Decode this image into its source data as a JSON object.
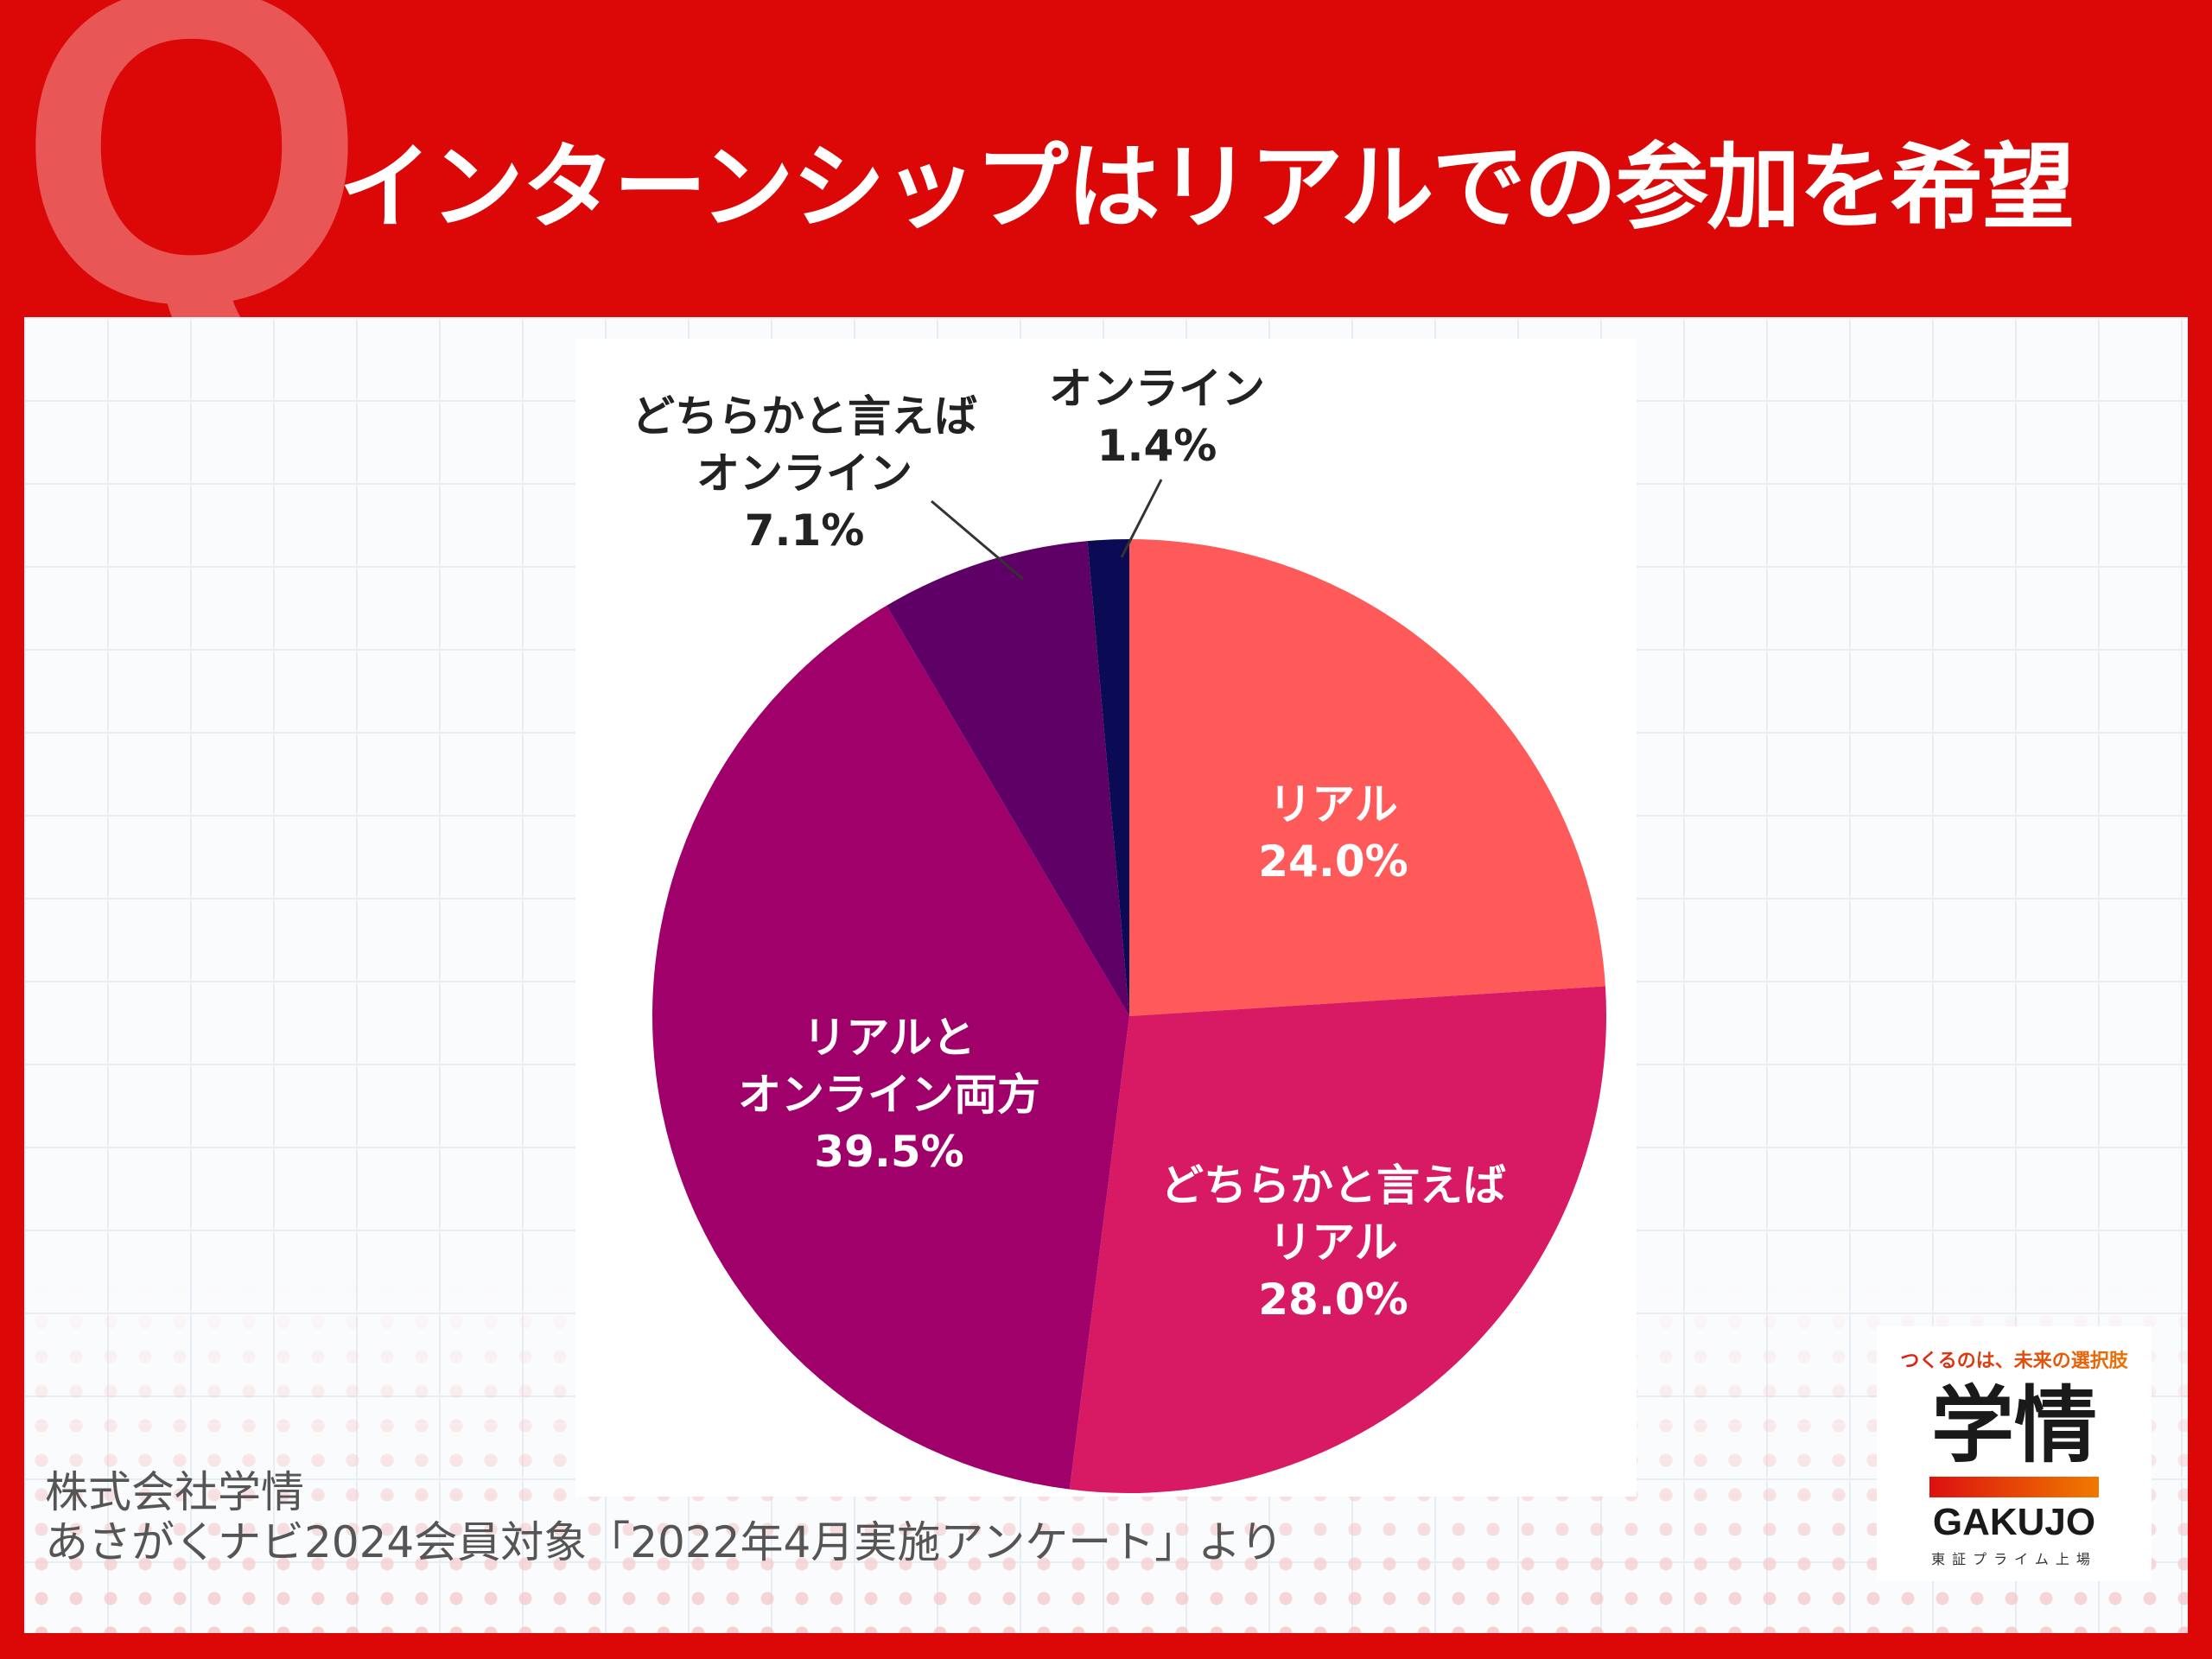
{
  "header": {
    "q_mark": "Q",
    "title": "インターンシップはリアルでの参加を希望"
  },
  "chart_data": {
    "type": "pie",
    "title": "インターンシップはリアルでの参加を希望",
    "start": "top",
    "direction": "clockwise",
    "slices": [
      {
        "label": "リアル",
        "value": 24.0,
        "value_label": "24.0%",
        "color": "#ff5a5a",
        "text_color": "#ffffff",
        "lines": [
          "リアル",
          "24.0%"
        ]
      },
      {
        "label": "どちらかと言えばリアル",
        "value": 28.0,
        "value_label": "28.0%",
        "color": "#d81a64",
        "text_color": "#ffffff",
        "lines": [
          "どちらかと言えば",
          "リアル",
          "28.0%"
        ]
      },
      {
        "label": "リアルとオンライン両方",
        "value": 39.5,
        "value_label": "39.5%",
        "color": "#a0006a",
        "text_color": "#ffffff",
        "lines": [
          "リアルと",
          "オンライン両方",
          "39.5%"
        ]
      },
      {
        "label": "どちらかと言えばオンライン",
        "value": 7.1,
        "value_label": "7.1%",
        "color": "#5e0066",
        "text_color": "#222222",
        "lines": [
          "どちらかと言えば",
          "オンライン",
          "7.1%"
        ]
      },
      {
        "label": "オンライン",
        "value": 1.4,
        "value_label": "1.4%",
        "color": "#0a0a55",
        "text_color": "#222222",
        "lines": [
          "オンライン",
          "1.4%"
        ]
      }
    ]
  },
  "source": {
    "line1": "株式会社学情",
    "line2": "あさがくナビ2024会員対象「2022年4月実施アンケート」より"
  },
  "logo": {
    "tagline": "つくるのは、未来の選択肢",
    "name_jp": "学情",
    "name_en": "GAKUJO",
    "listing": "東証プライム上場"
  }
}
